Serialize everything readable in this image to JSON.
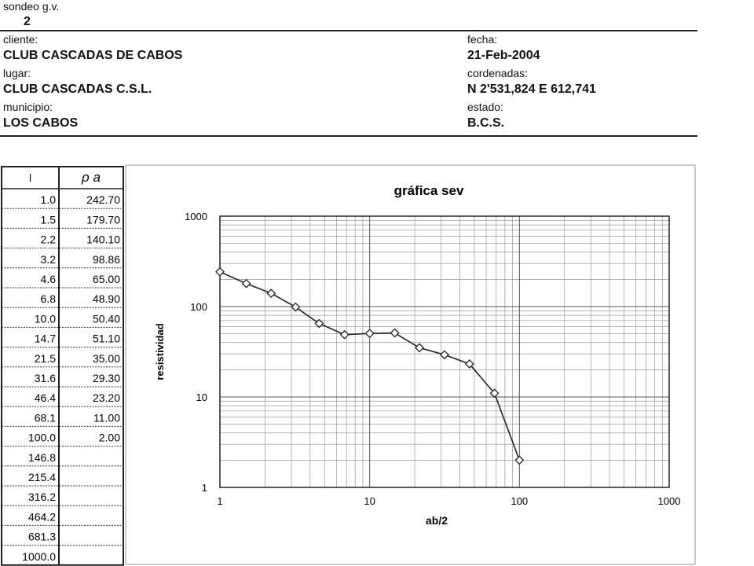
{
  "header": {
    "sondeo_label": "sondeo g.v.",
    "sondeo_value": "2",
    "left": [
      {
        "label": "cliente:",
        "value": "CLUB CASCADAS DE CABOS"
      },
      {
        "label": "lugar:",
        "value": "CLUB CASCADAS C.S.L."
      },
      {
        "label": "municipio:",
        "value": "LOS CABOS"
      }
    ],
    "right": [
      {
        "label": "fecha:",
        "value": "21-Feb-2004"
      },
      {
        "label": "cordenadas:",
        "value": "N 2'531,824 E 612,741"
      },
      {
        "label": "estado:",
        "value": "B.C.S."
      }
    ]
  },
  "table": {
    "columns": [
      "l",
      "ρ a"
    ],
    "rows": [
      [
        "1.0",
        "242.70"
      ],
      [
        "1.5",
        "179.70"
      ],
      [
        "2.2",
        "140.10"
      ],
      [
        "3.2",
        "98.86"
      ],
      [
        "4.6",
        "65.00"
      ],
      [
        "6.8",
        "48.90"
      ],
      [
        "10.0",
        "50.40"
      ],
      [
        "14.7",
        "51.10"
      ],
      [
        "21.5",
        "35.00"
      ],
      [
        "31.6",
        "29.30"
      ],
      [
        "46.4",
        "23.20"
      ],
      [
        "68.1",
        "11.00"
      ],
      [
        "100.0",
        "2.00"
      ],
      [
        "146.8"
      ],
      [
        "215.4"
      ],
      [
        "316.2"
      ],
      [
        "464.2"
      ],
      [
        "681.3"
      ],
      [
        "1000.0"
      ]
    ]
  },
  "chart_data": {
    "type": "line",
    "title": "gráfica sev",
    "x_label": "ab/2",
    "y_label": "resistividad",
    "x": [
      1.0,
      1.5,
      2.2,
      3.2,
      4.6,
      6.8,
      10.0,
      14.7,
      21.5,
      31.6,
      46.4,
      68.1,
      100.0
    ],
    "values": [
      242.7,
      179.7,
      140.1,
      98.86,
      65.0,
      48.9,
      50.4,
      51.1,
      35.0,
      29.3,
      23.2,
      11.0,
      2.0
    ],
    "color": "#222222",
    "marker": "diamond",
    "xlim": [
      1,
      1000
    ],
    "ylim": [
      1,
      1000
    ],
    "xticks": [
      1,
      10,
      100,
      1000
    ],
    "yticks": [
      1,
      10,
      100,
      1000
    ],
    "x_log": true,
    "y_log": true,
    "grid": true
  }
}
